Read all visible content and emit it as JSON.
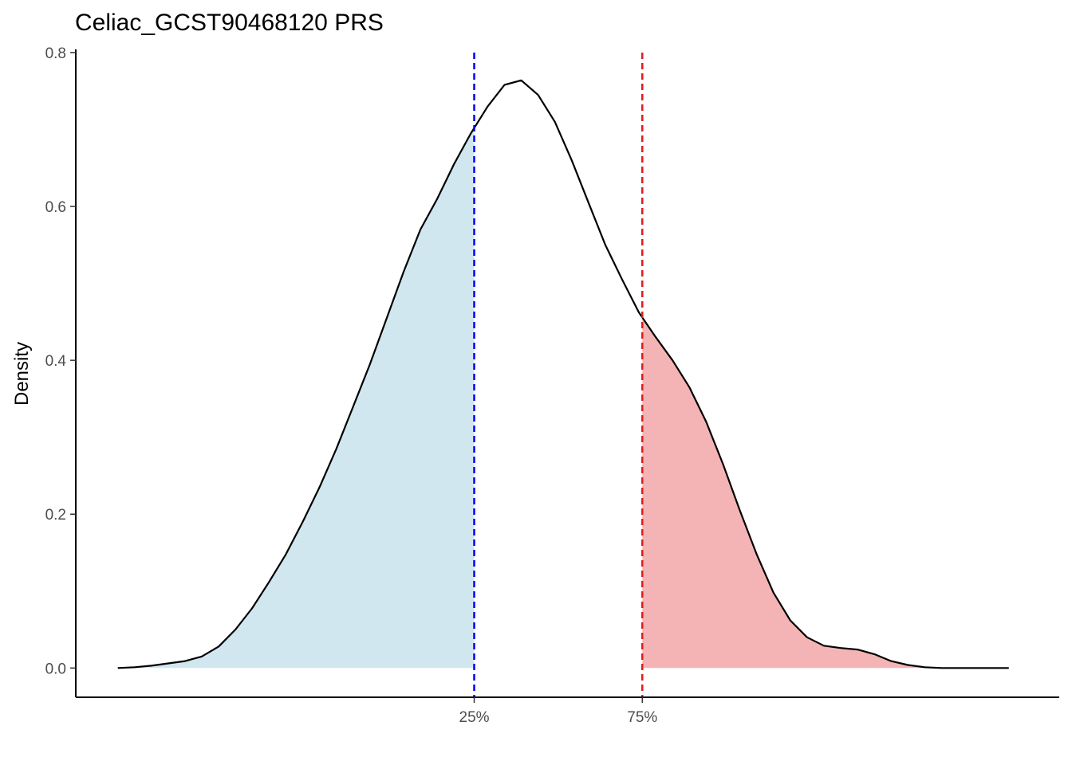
{
  "chart_data": {
    "type": "area",
    "title": "Celiac_GCST90468120 PRS",
    "xlabel": "",
    "ylabel": "Density",
    "ylim": [
      -0.038,
      0.8
    ],
    "xlim": [
      -0.1,
      2.24
    ],
    "y_ticks": [
      0.0,
      0.2,
      0.4,
      0.6,
      0.8
    ],
    "y_tick_labels": [
      "0.0",
      "0.2",
      "0.4",
      "0.6",
      "0.8"
    ],
    "x_ticks": [
      {
        "x": 0.848,
        "label": "25%"
      },
      {
        "x": 1.248,
        "label": "75%"
      }
    ],
    "grid": false,
    "legend": "none",
    "density_curve": {
      "x": [
        0.0,
        0.04,
        0.08,
        0.12,
        0.16,
        0.2,
        0.24,
        0.28,
        0.32,
        0.36,
        0.4,
        0.44,
        0.48,
        0.52,
        0.56,
        0.6,
        0.64,
        0.68,
        0.72,
        0.76,
        0.8,
        0.84,
        0.88,
        0.92,
        0.96,
        1.0,
        1.04,
        1.08,
        1.12,
        1.16,
        1.2,
        1.24,
        1.28,
        1.32,
        1.36,
        1.4,
        1.44,
        1.48,
        1.52,
        1.56,
        1.6,
        1.64,
        1.68,
        1.72,
        1.76,
        1.8,
        1.84,
        1.88,
        1.92,
        1.96,
        2.0,
        2.04,
        2.08,
        2.12
      ],
      "y": [
        0.0,
        0.001,
        0.003,
        0.006,
        0.009,
        0.015,
        0.028,
        0.05,
        0.078,
        0.112,
        0.148,
        0.19,
        0.235,
        0.285,
        0.34,
        0.395,
        0.455,
        0.515,
        0.57,
        0.61,
        0.655,
        0.695,
        0.73,
        0.758,
        0.764,
        0.745,
        0.71,
        0.66,
        0.605,
        0.55,
        0.505,
        0.462,
        0.43,
        0.4,
        0.365,
        0.32,
        0.265,
        0.205,
        0.148,
        0.098,
        0.062,
        0.04,
        0.029,
        0.026,
        0.024,
        0.018,
        0.009,
        0.004,
        0.001,
        0.0,
        0.0,
        0.0,
        0.0,
        0.0
      ]
    },
    "quantiles": [
      {
        "name": "25%",
        "x": 0.848,
        "color": "#0000ff",
        "fill": "#d1e7ef",
        "region": "left"
      },
      {
        "name": "75%",
        "x": 1.248,
        "color": "#e31a1c",
        "fill": "#f4b4b5",
        "region": "right"
      }
    ],
    "curve_color": "#000000"
  }
}
